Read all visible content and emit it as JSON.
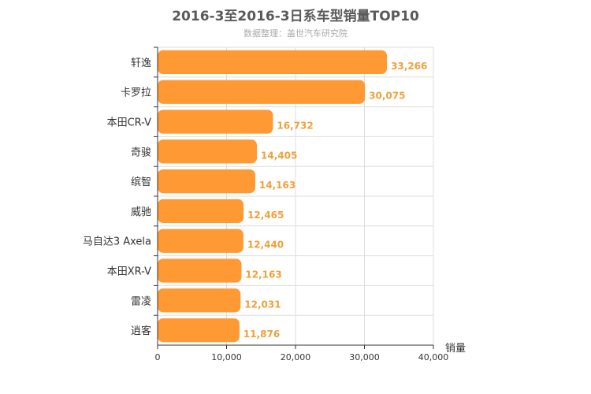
{
  "chart_data": {
    "type": "bar",
    "orientation": "horizontal",
    "title": "2016-3至2016-3日系车型销量TOP10",
    "subtitle": "数据整理：盖世汽车研究院",
    "categories": [
      "轩逸",
      "卡罗拉",
      "本田CR-V",
      "奇骏",
      "缤智",
      "威驰",
      "马自达3 Axela",
      "本田XR-V",
      "雷凌",
      "逍客"
    ],
    "values": [
      33266,
      30075,
      16732,
      14405,
      14163,
      12465,
      12440,
      12163,
      12031,
      11876
    ],
    "value_labels": [
      "33,266",
      "30,075",
      "16,732",
      "14,405",
      "14,163",
      "12,465",
      "12,440",
      "12,163",
      "12,031",
      "11,876"
    ],
    "xlabel": "销量",
    "ylabel": "",
    "xlim": [
      0,
      40000
    ],
    "x_ticks": [
      0,
      10000,
      20000,
      30000,
      40000
    ],
    "x_tick_labels": [
      "0",
      "10,000",
      "20,000",
      "30,000",
      "40,000"
    ],
    "grid": true,
    "bar_color": "#ff9933",
    "label_color": "#f0a03c"
  }
}
